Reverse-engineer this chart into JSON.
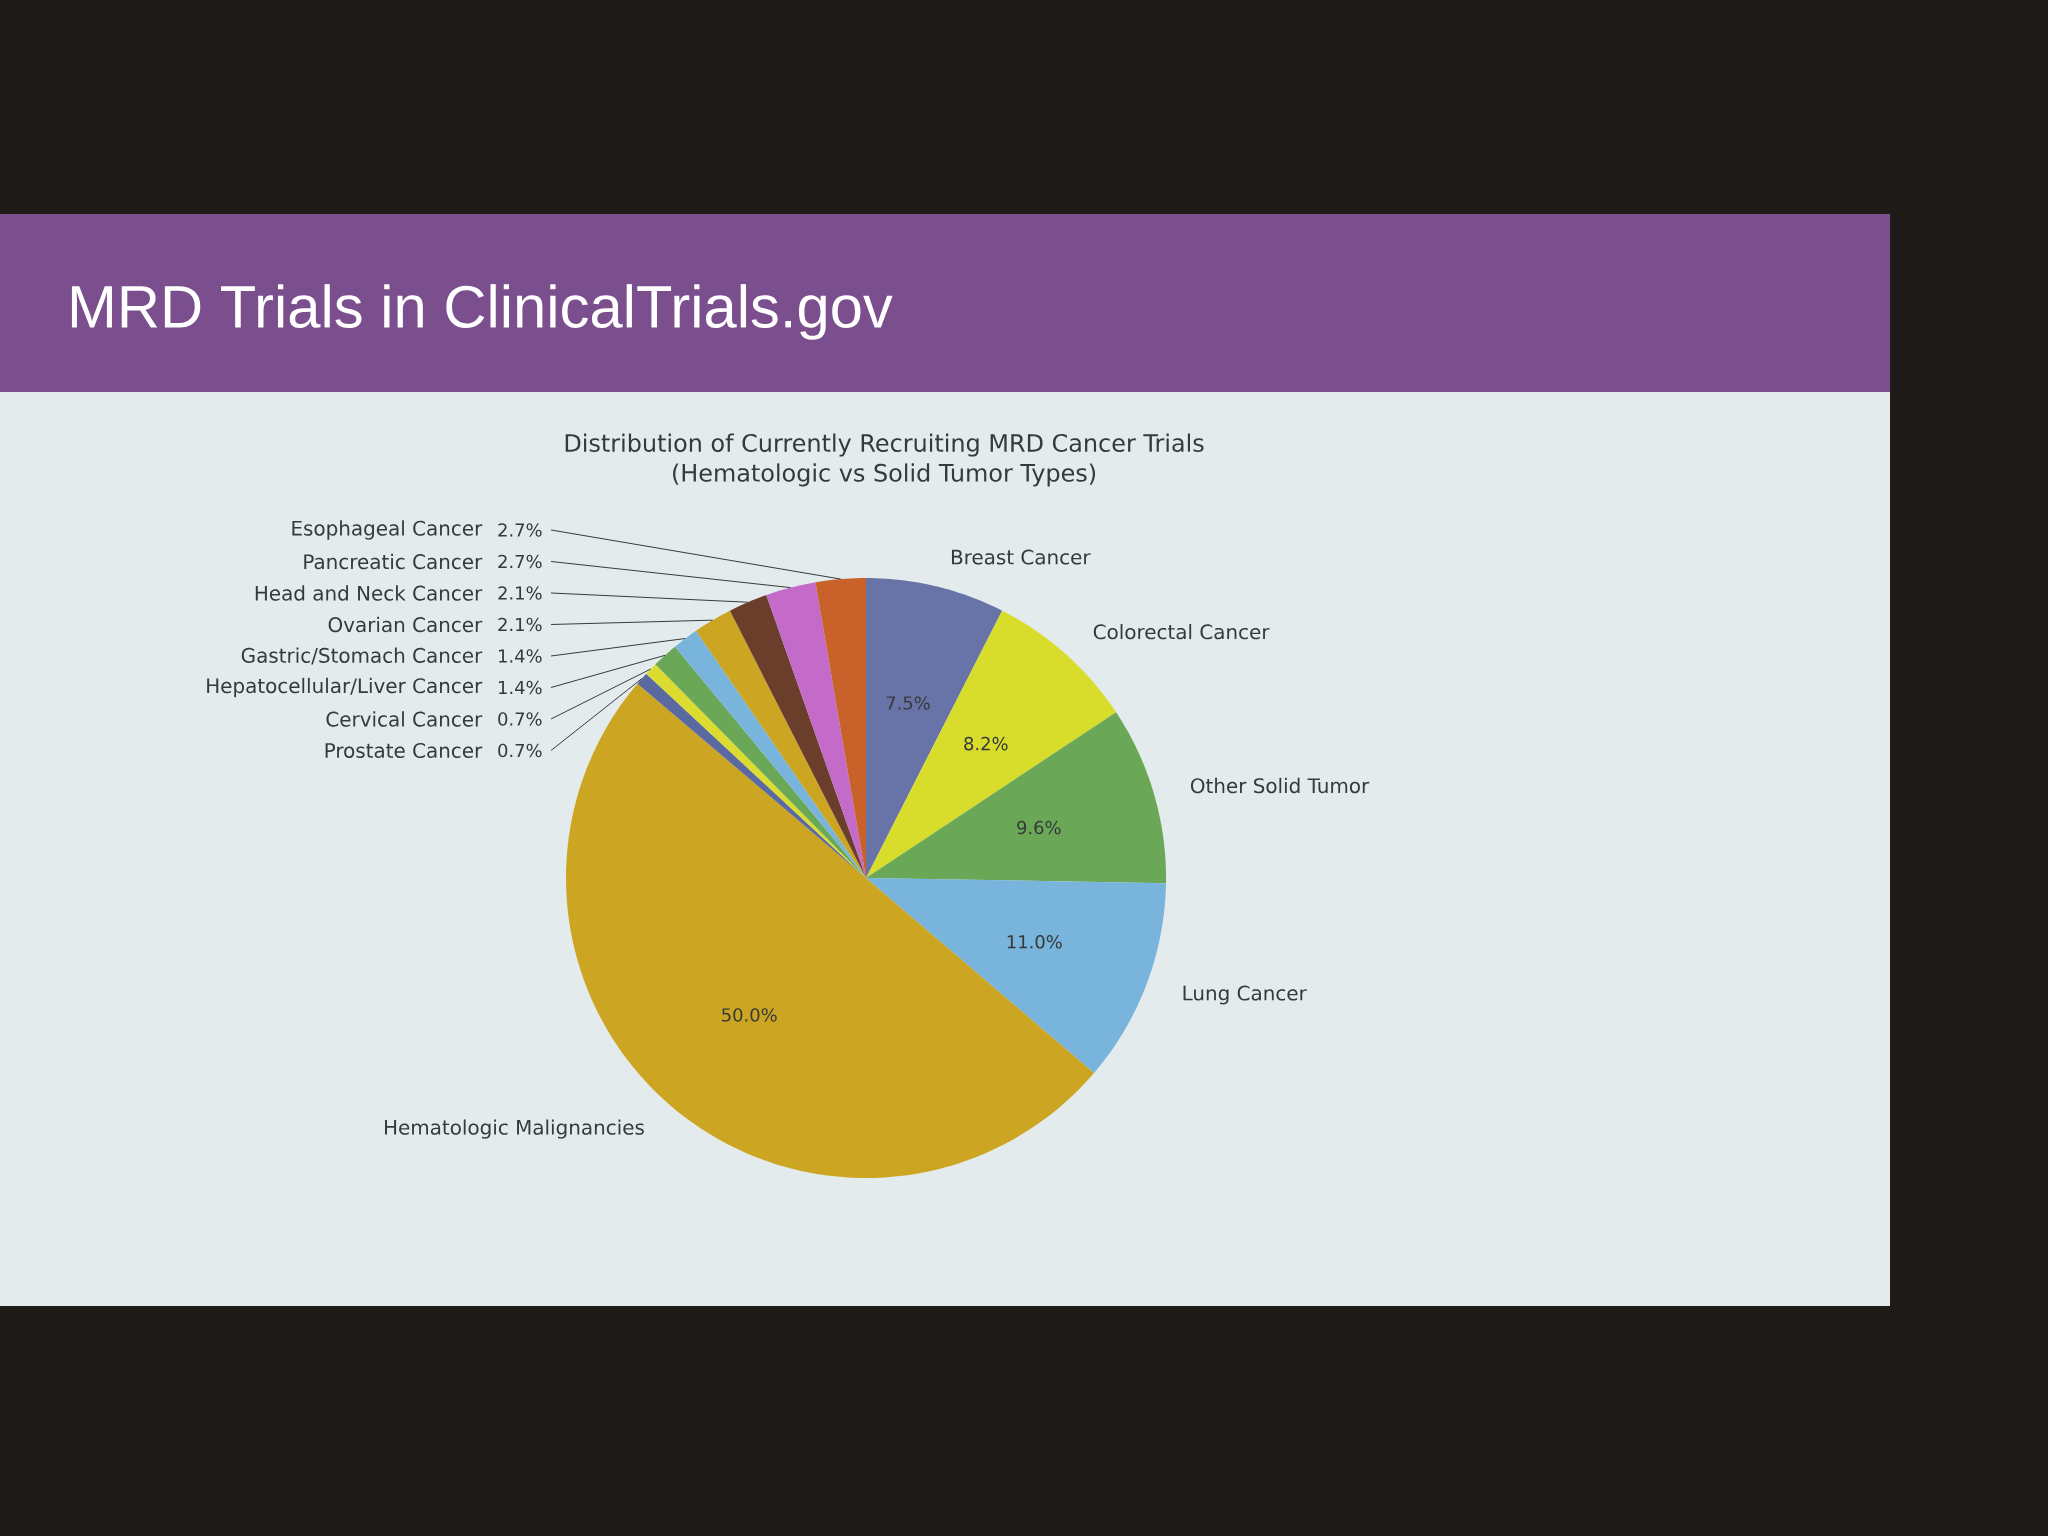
{
  "chart_data": {
    "type": "pie",
    "title": "MRD Trials in ClinicalTrials.gov",
    "subtitle": "Distribution of Currently Recruiting MRD Cancer Trials (Hematologic vs Solid Tumor Types)",
    "categories": [
      "Breast Cancer",
      "Colorectal Cancer",
      "Other Solid Tumor",
      "Lung Cancer",
      "Hematologic Malignancies",
      "Prostate Cancer",
      "Cervical Cancer",
      "Hepatocellular/Liver Cancer",
      "Gastric/Stomach Cancer",
      "Ovarian Cancer",
      "Head and Neck Cancer",
      "Pancreatic Cancer",
      "Esophageal Cancer"
    ],
    "values": [
      7.5,
      8.2,
      9.6,
      11.0,
      50.0,
      0.7,
      0.7,
      1.4,
      1.4,
      2.1,
      2.1,
      2.7,
      2.7
    ],
    "value_labels": [
      "7.5%",
      "8.2%",
      "9.6%",
      "11.0%",
      "50.0%",
      "0.7%",
      "0.7%",
      "1.4%",
      "1.4%",
      "2.1%",
      "2.1%",
      "2.7%",
      "2.7%"
    ],
    "colors": [
      "#6874a8",
      "#d8dc2a",
      "#6aa857",
      "#78b4dc",
      "#cca622",
      "#5a6aa0",
      "#dcdc30",
      "#6aa857",
      "#78b4dc",
      "#cca622",
      "#6a3e2a",
      "#c46ac8",
      "#c8622a"
    ]
  }
}
